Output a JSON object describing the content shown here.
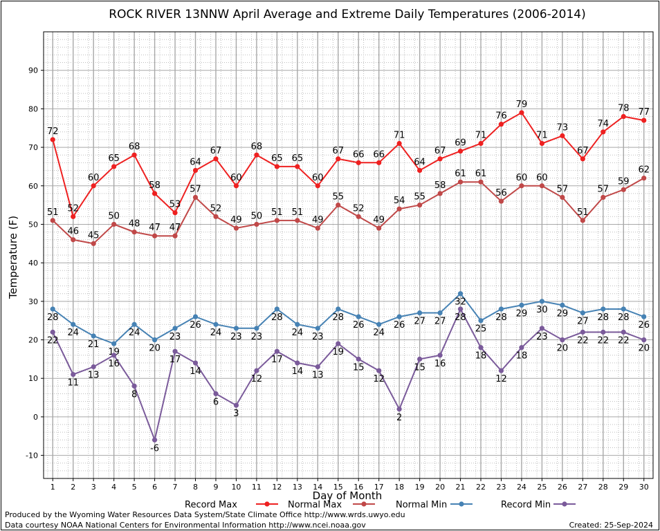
{
  "chart_data": {
    "type": "line",
    "title": "ROCK RIVER 13NNW April Average and Extreme Daily Temperatures (2006-2014)",
    "xlabel": "Day of Month",
    "ylabel": "Temperature (F)",
    "x": [
      1,
      2,
      3,
      4,
      5,
      6,
      7,
      8,
      9,
      10,
      11,
      12,
      13,
      14,
      15,
      16,
      17,
      18,
      19,
      20,
      21,
      22,
      23,
      24,
      25,
      26,
      27,
      28,
      29,
      30
    ],
    "xlim": [
      0.55,
      30.45
    ],
    "ylim": [
      -16,
      100
    ],
    "yticks": [
      -10,
      0,
      10,
      20,
      30,
      40,
      50,
      60,
      70,
      80,
      90
    ],
    "grid": true,
    "legend_position": "bottom",
    "series": [
      {
        "name": "Record Max",
        "color": "#ee2020",
        "values": [
          72,
          52,
          60,
          65,
          68,
          58,
          53,
          64,
          67,
          60,
          68,
          65,
          65,
          60,
          67,
          66,
          66,
          71,
          64,
          67,
          69,
          71,
          76,
          79,
          71,
          73,
          67,
          74,
          78,
          77
        ]
      },
      {
        "name": "Normal Max",
        "color": "#c04848",
        "values": [
          51,
          46,
          45,
          50,
          48,
          47,
          47,
          57,
          52,
          49,
          50,
          51,
          51,
          49,
          55,
          52,
          49,
          54,
          55,
          58,
          61,
          61,
          56,
          60,
          60,
          57,
          51,
          57,
          59,
          62
        ]
      },
      {
        "name": "Normal Min",
        "color": "#4682b4",
        "values": [
          28,
          24,
          21,
          19,
          24,
          20,
          23,
          26,
          24,
          23,
          23,
          28,
          24,
          23,
          28,
          26,
          24,
          26,
          27,
          27,
          32,
          25,
          28,
          29,
          30,
          29,
          27,
          28,
          28,
          26
        ]
      },
      {
        "name": "Record Min",
        "color": "#7a5a9a",
        "values": [
          22,
          11,
          13,
          16,
          8,
          -6,
          17,
          14,
          6,
          3,
          12,
          17,
          14,
          13,
          19,
          15,
          12,
          2,
          15,
          16,
          28,
          18,
          12,
          18,
          23,
          20,
          22,
          22,
          22,
          20
        ]
      }
    ]
  },
  "footer": {
    "line1": "Produced by the Wyoming Water Resources Data System/State Climate Office http://www.wrds.uwyo.edu",
    "line2": "Data courtesy NOAA National Centers for Environmental Information http://www.ncei.noaa.gov",
    "created": "Created:  25-Sep-2024"
  }
}
